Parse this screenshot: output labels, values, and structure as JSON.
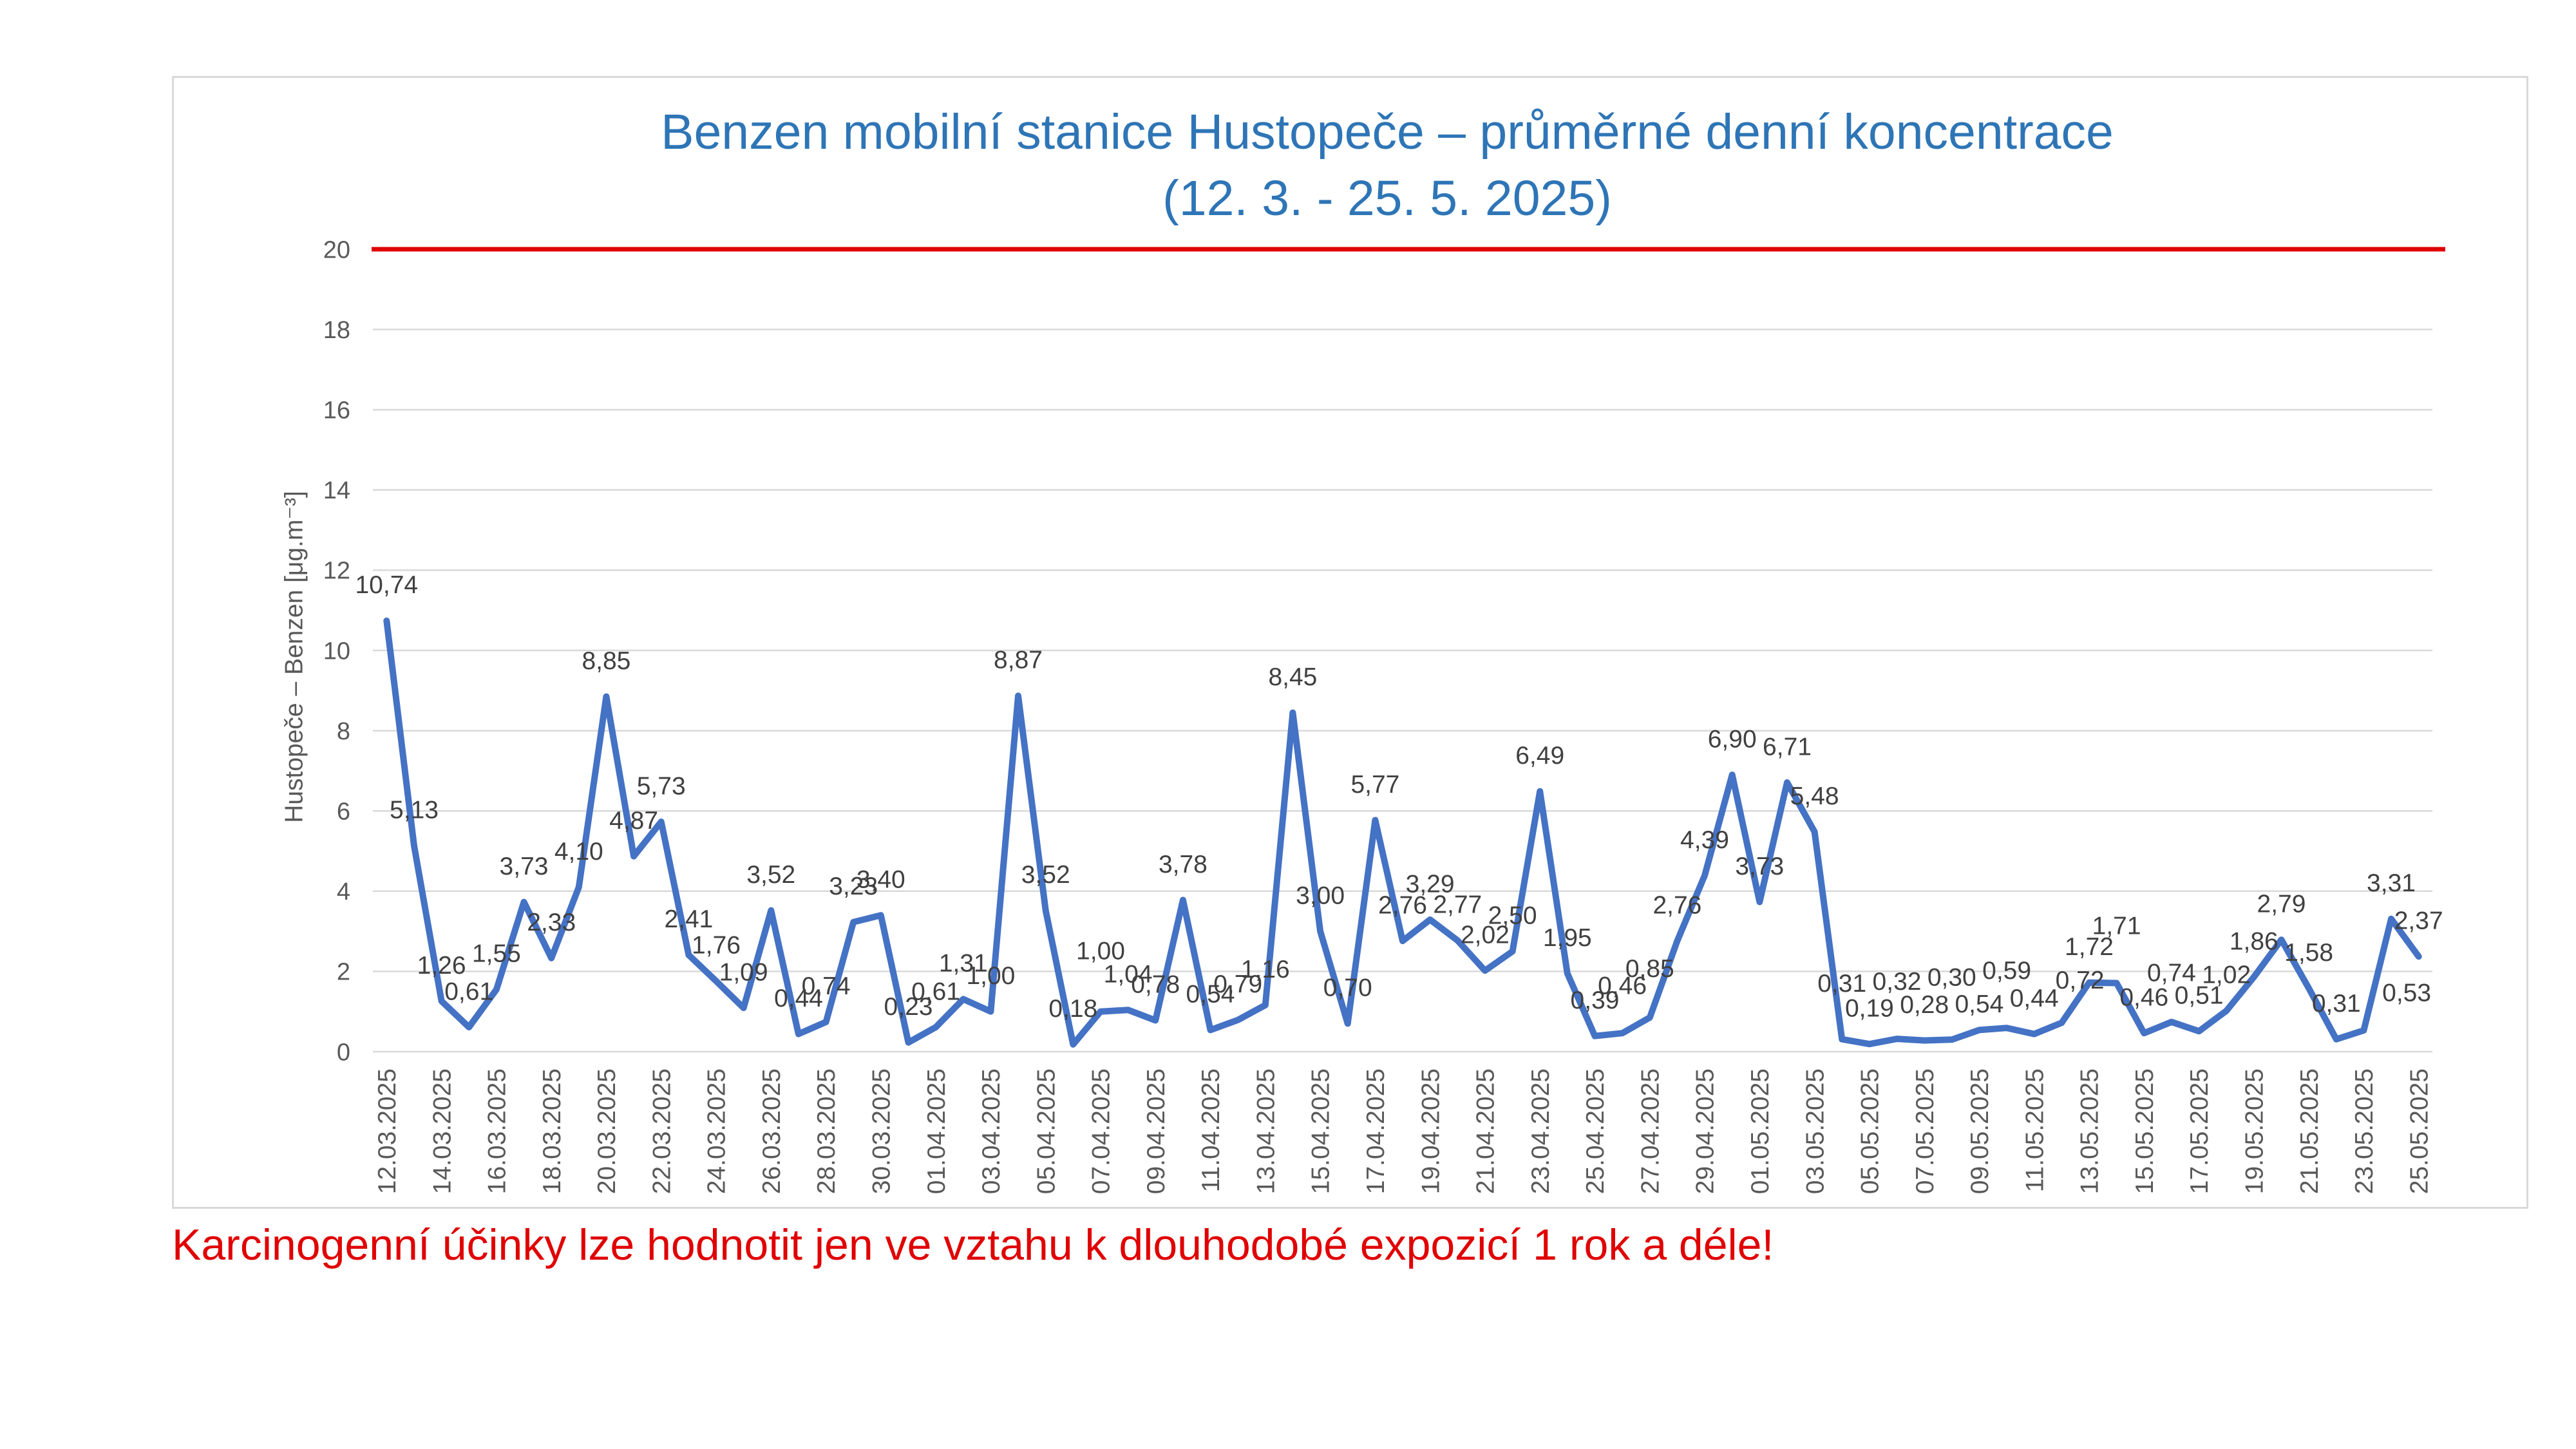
{
  "chart_data": {
    "type": "line",
    "title": "Benzen mobilní stanice Hustopeče – průměrné denní koncentrace",
    "subtitle": "(12. 3. - 25. 5. 2025)",
    "ylabel": "Hustopeče – Benzen  [μg.m⁻³]",
    "ylim": [
      0,
      20
    ],
    "y_ticks": [
      0,
      2,
      4,
      6,
      8,
      10,
      12,
      14,
      16,
      18,
      20
    ],
    "grid": true,
    "legend": "none",
    "x_tick_labels": [
      "12.03.2025",
      "14.03.2025",
      "16.03.2025",
      "18.03.2025",
      "20.03.2025",
      "22.03.2025",
      "24.03.2025",
      "26.03.2025",
      "28.03.2025",
      "30.03.2025",
      "01.04.2025",
      "03.04.2025",
      "05.04.2025",
      "07.04.2025",
      "09.04.2025",
      "11.04.2025",
      "13.04.2025",
      "15.04.2025",
      "17.04.2025",
      "19.04.2025",
      "21.04.2025",
      "23.04.2025",
      "25.04.2025",
      "27.04.2025",
      "29.04.2025",
      "01.05.2025",
      "03.05.2025",
      "05.05.2025",
      "07.05.2025",
      "09.05.2025",
      "11.05.2025",
      "13.05.2025",
      "15.05.2025",
      "17.05.2025",
      "19.05.2025",
      "21.05.2025",
      "23.05.2025",
      "25.05.2025"
    ],
    "series": [
      {
        "color": "#4472c4",
        "values": [
          10.74,
          5.13,
          1.26,
          0.61,
          1.55,
          3.73,
          2.33,
          4.1,
          8.85,
          4.87,
          5.73,
          2.41,
          1.76,
          1.09,
          3.52,
          0.44,
          0.74,
          3.23,
          3.4,
          0.23,
          0.61,
          1.31,
          1.0,
          8.87,
          3.52,
          0.18,
          1.0,
          1.04,
          0.78,
          3.78,
          0.54,
          0.79,
          1.16,
          8.45,
          3.0,
          0.7,
          5.77,
          2.76,
          3.29,
          2.77,
          2.02,
          2.5,
          6.49,
          1.95,
          0.39,
          0.46,
          0.85,
          2.76,
          4.39,
          6.9,
          3.73,
          6.71,
          5.48,
          0.31,
          0.19,
          0.32,
          0.28,
          0.3,
          0.54,
          0.59,
          0.44,
          0.72,
          1.72,
          1.71,
          0.46,
          0.74,
          0.51,
          1.02,
          1.86,
          2.79,
          1.58,
          0.31,
          0.53,
          3.31,
          2.37
        ],
        "data_labels": [
          "10,74",
          "5,13",
          "1,26",
          "0,61",
          "1,55",
          "3,73",
          "2,33",
          "4,10",
          "8,85",
          "4,87",
          "5,73",
          "2,41",
          "1,76",
          "1,09",
          "3,52",
          "0,44",
          "0,74",
          "3,23",
          "3,40",
          "0,23",
          "0,61",
          "1,31",
          "1,00",
          "8,87",
          "3,52",
          "0,18",
          "1,00",
          "1,04",
          "0,78",
          "3,78",
          "0,54",
          "0,79",
          "1,16",
          "8,45",
          "3,00",
          "0,70",
          "5,77",
          "2,76",
          "3,29",
          "2,77",
          "2,02",
          "2,50",
          "6,49",
          "1,95",
          "0,39",
          "0,46",
          "0,85",
          "2,76",
          "4,39",
          "6,90",
          "3,73",
          "6,71",
          "5,48",
          "0,31",
          "0,19",
          "0,32",
          "0,28",
          "0,30",
          "0,54",
          "0,59",
          "0,44",
          "0,72",
          "1,72",
          "1,71",
          "0,46",
          "0,74",
          "0,51",
          "1,02",
          "1,86",
          "2,79",
          "1,58",
          "0,31",
          "0,53",
          "3,31",
          "2,37"
        ]
      }
    ],
    "reference_line": {
      "value": 20,
      "color": "#e00000"
    }
  },
  "footnote": "Karcinogenní účinky lze hodnotit jen ve vztahu k dlouhodobé expozicí 1 rok a déle!",
  "colors": {
    "title": "#2e75b6",
    "footnote": "#e00000",
    "grid": "#d9d9d9",
    "axis_text": "#595959",
    "data_label": "#404040"
  }
}
